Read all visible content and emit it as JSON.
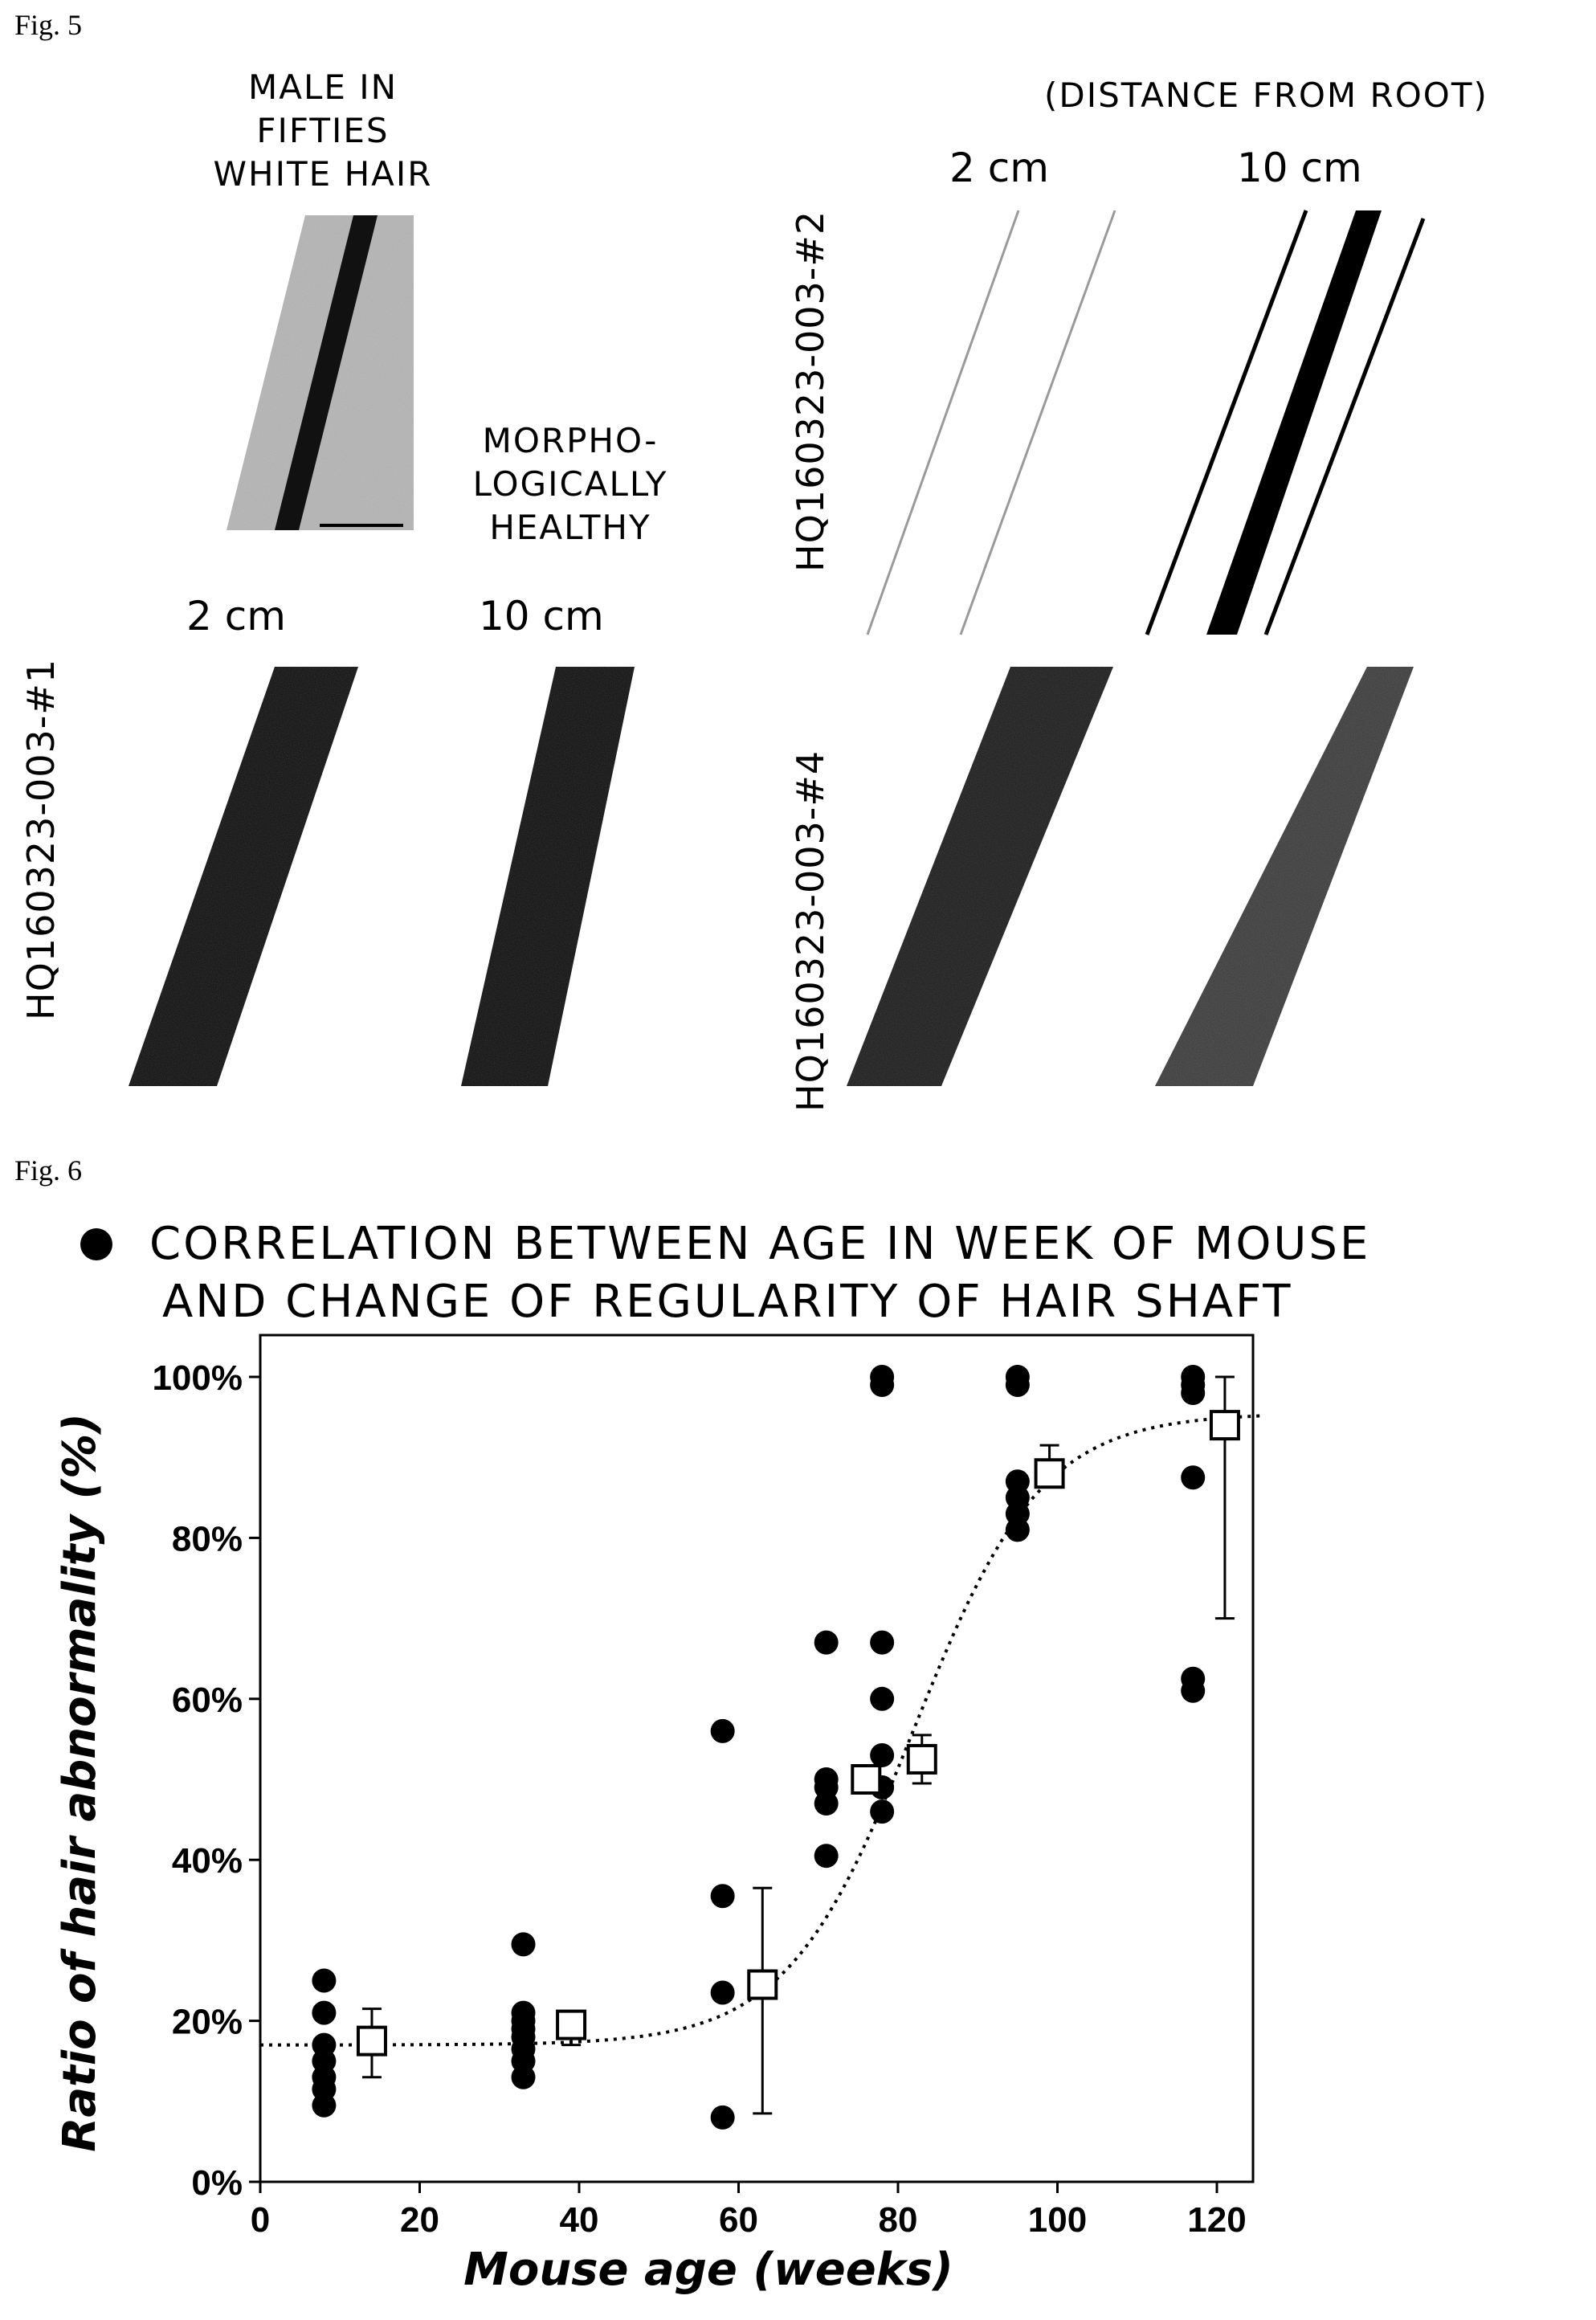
{
  "fig5": {
    "label": "Fig. 5",
    "caption_top_lines": [
      "MALE IN",
      "FIFTIES",
      "WHITE HAIR"
    ],
    "caption_healthy_lines": [
      "MORPHO-",
      "LOGICALLY",
      "HEALTHY"
    ],
    "distance_header": "(DISTANCE FROM ROOT)",
    "dist_2cm": "2 cm",
    "dist_10cm": "10 cm",
    "sample_1": "HQ160323-003-#1",
    "sample_2": "HQ160323-003-#2",
    "sample_4": "HQ160323-003-#4"
  },
  "fig6": {
    "label": "Fig. 6",
    "title_line1": "CORRELATION BETWEEN AGE IN WEEK OF MOUSE",
    "title_line2": "AND CHANGE OF REGULARITY OF HAIR SHAFT"
  },
  "chart_data": {
    "type": "scatter",
    "xlabel": "Mouse age (weeks)",
    "ylabel": "Ratio of hair abnormality (%)",
    "xlim": [
      0,
      125
    ],
    "ylim": [
      0,
      100
    ],
    "x_ticks": [
      "0",
      "20",
      "40",
      "60",
      "80",
      "100",
      "120"
    ],
    "y_ticks": [
      "0%",
      "20%",
      "40%",
      "60%",
      "80%",
      "100%"
    ],
    "individual_points": [
      [
        8,
        25
      ],
      [
        8,
        21
      ],
      [
        8,
        17
      ],
      [
        8,
        15
      ],
      [
        8,
        13
      ],
      [
        8,
        11.5
      ],
      [
        8,
        9.5
      ],
      [
        33,
        29.5
      ],
      [
        33,
        21
      ],
      [
        33,
        20
      ],
      [
        33,
        19
      ],
      [
        33,
        18
      ],
      [
        33,
        16.5
      ],
      [
        33,
        15
      ],
      [
        33,
        13
      ],
      [
        58,
        56
      ],
      [
        58,
        35.5
      ],
      [
        58,
        23.5
      ],
      [
        58,
        8
      ],
      [
        71,
        67
      ],
      [
        71,
        50
      ],
      [
        71,
        49
      ],
      [
        71,
        47
      ],
      [
        71,
        40.5
      ],
      [
        78,
        100
      ],
      [
        78,
        99
      ],
      [
        78,
        67
      ],
      [
        78,
        60
      ],
      [
        78,
        53
      ],
      [
        78,
        49
      ],
      [
        78,
        46
      ],
      [
        95,
        100
      ],
      [
        95,
        99
      ],
      [
        95,
        87
      ],
      [
        95,
        85
      ],
      [
        95,
        83
      ],
      [
        95,
        81
      ],
      [
        117,
        100
      ],
      [
        117,
        99
      ],
      [
        117,
        98
      ],
      [
        117,
        87.5
      ],
      [
        117,
        62.5
      ],
      [
        117,
        61
      ]
    ],
    "mean_points": [
      {
        "x": 14,
        "y": 17.5,
        "err_low": 13,
        "err_high": 21.5
      },
      {
        "x": 39,
        "y": 19.5,
        "err_low": 17,
        "err_high": 21
      },
      {
        "x": 63,
        "y": 24.5,
        "err_low": 8.5,
        "err_high": 36.5
      },
      {
        "x": 76,
        "y": 50,
        "err_low": 49,
        "err_high": 51
      },
      {
        "x": 83,
        "y": 52.5,
        "err_low": 49.5,
        "err_high": 55.5
      },
      {
        "x": 99,
        "y": 88,
        "err_low": 86.5,
        "err_high": 91.5
      },
      {
        "x": 121,
        "y": 94,
        "err_low": 70,
        "err_high": 100
      }
    ],
    "fit_curve": {
      "style": "dotted",
      "bottom": 17,
      "top": 95.5,
      "midpoint": 82,
      "slope": 8
    }
  }
}
